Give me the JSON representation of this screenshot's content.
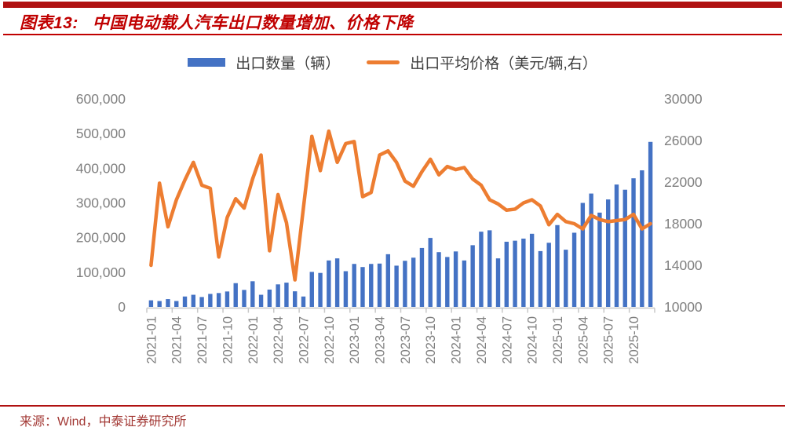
{
  "header": {
    "figure_label": "图表13:",
    "title_text": "中国电动载人汽车出口数量增加、价格下降"
  },
  "legend": {
    "bar_label": "出口数量（辆）",
    "line_label": "出口平均价格（美元/辆,右）"
  },
  "footer": {
    "source": "来源：Wind，中泰证券研究所"
  },
  "colors": {
    "bar": "#4472C4",
    "line": "#ED7D31",
    "accent_red": "#C00000",
    "axis_text": "#7F7F7F",
    "axis_line": "#C8C8C8"
  },
  "chart_data": {
    "type": "combo",
    "title": "中国电动载人汽车出口数量增加、价格下降",
    "xlabel": "",
    "ylabel_left": "出口数量（辆）",
    "ylabel_right": "出口平均价格（美元/辆,右）",
    "legend_position": "top",
    "grid": false,
    "x_tick_interval": 3,
    "left_axis": {
      "min": 0,
      "max": 600000,
      "step": 100000,
      "tick_labels": [
        "0",
        "100,000",
        "200,000",
        "300,000",
        "400,000",
        "500,000",
        "600,000"
      ]
    },
    "right_axis": {
      "min": 10000,
      "max": 30000,
      "step": 4000,
      "tick_labels": [
        "10000",
        "14000",
        "18000",
        "22000",
        "26000",
        "30000"
      ]
    },
    "categories": [
      "2021-01",
      "2021-02",
      "2021-03",
      "2021-04",
      "2021-05",
      "2021-06",
      "2021-07",
      "2021-08",
      "2021-09",
      "2021-10",
      "2021-11",
      "2021-12",
      "2022-01",
      "2022-02",
      "2022-03",
      "2022-04",
      "2022-05",
      "2022-06",
      "2022-07",
      "2022-08",
      "2022-09",
      "2022-10",
      "2022-11",
      "2022-12",
      "2023-01",
      "2023-02",
      "2023-03",
      "2023-04",
      "2023-05",
      "2023-06",
      "2023-07",
      "2023-08",
      "2023-09",
      "2023-10",
      "2023-11",
      "2023-12",
      "2024-01",
      "2024-02",
      "2024-03",
      "2024-04",
      "2024-05",
      "2024-06",
      "2024-07",
      "2024-08",
      "2024-09",
      "2024-10",
      "2024-11",
      "2024-12",
      "2025-01",
      "2025-02",
      "2025-03",
      "2025-04",
      "2025-05",
      "2025-06",
      "2025-07",
      "2025-08",
      "2025-09",
      "2025-10",
      "2025-11",
      "2025-12"
    ],
    "series": [
      {
        "name": "出口数量（辆）",
        "type": "bar",
        "axis": "left",
        "color": "#4472C4",
        "values": [
          19000,
          17000,
          22500,
          17000,
          30000,
          35000,
          28500,
          37500,
          40000,
          44500,
          68500,
          49000,
          74000,
          35000,
          50000,
          65000,
          70000,
          45000,
          30000,
          101000,
          98000,
          134000,
          140000,
          103000,
          124000,
          115000,
          124000,
          125000,
          152000,
          119000,
          133000,
          142000,
          170000,
          199000,
          158000,
          144000,
          160000,
          134000,
          178000,
          217000,
          221000,
          140000,
          188000,
          191000,
          197000,
          211000,
          161000,
          185000,
          236000,
          165000,
          214000,
          300000,
          327000,
          272000,
          310000,
          353000,
          338000,
          371000,
          394000,
          476000
        ]
      },
      {
        "name": "出口平均价格（美元/辆,右）",
        "type": "line",
        "axis": "right",
        "color": "#ED7D31",
        "values": [
          14000,
          21900,
          17700,
          20300,
          22200,
          23900,
          21700,
          21400,
          14800,
          18600,
          20400,
          19500,
          22300,
          24600,
          15400,
          20800,
          18100,
          12600,
          19500,
          26400,
          23100,
          26900,
          23900,
          25700,
          25900,
          20600,
          21000,
          24600,
          25000,
          23900,
          22100,
          21600,
          23000,
          24200,
          22700,
          23500,
          23200,
          23400,
          22300,
          21700,
          20300,
          19900,
          19300,
          19400,
          20000,
          20300,
          19700,
          17900,
          18900,
          18200,
          18000,
          17500,
          18800,
          18400,
          18200,
          18300,
          18400,
          18900,
          17500,
          18000
        ]
      }
    ]
  }
}
